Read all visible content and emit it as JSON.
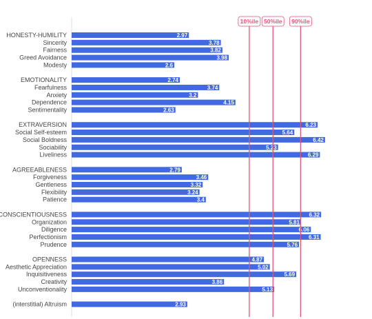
{
  "chart_data": {
    "type": "bar",
    "orientation": "horizontal",
    "xlim": [
      0,
      7
    ],
    "percentiles": [
      {
        "label": "10%ile",
        "value": 4.5,
        "color": "#e0557a"
      },
      {
        "label": "50%ile",
        "value": 5.1,
        "color": "#e0557a"
      },
      {
        "label": "90%ile",
        "value": 5.8,
        "color": "#e0557a"
      }
    ],
    "rows": [
      {
        "label": "HONESTY-HUMILITY",
        "value": 2.97,
        "display": "2.97"
      },
      {
        "label": "Sincerity",
        "value": 3.78,
        "display": "3.78"
      },
      {
        "label": "Fairness",
        "value": 3.82,
        "display": "3.82"
      },
      {
        "label": "Greed Avoidance",
        "value": 3.98,
        "display": "3.98"
      },
      {
        "label": "Modesty",
        "value": 2.6,
        "display": "2.6"
      },
      null,
      {
        "label": "EMOTIONALITY",
        "value": 2.74,
        "display": "2.74"
      },
      {
        "label": "Fearfulness",
        "value": 3.74,
        "display": "3.74"
      },
      {
        "label": "Anxiety",
        "value": 3.2,
        "display": "3.2"
      },
      {
        "label": "Dependence",
        "value": 4.15,
        "display": "4.15"
      },
      {
        "label": "Sentimentality",
        "value": 2.63,
        "display": "2.63"
      },
      null,
      {
        "label": "EXTRAVERSION",
        "value": 6.23,
        "display": "6.23"
      },
      {
        "label": "Social Self-esteem",
        "value": 5.64,
        "display": "5.64"
      },
      {
        "label": "Social Boldness",
        "value": 6.42,
        "display": "6.42"
      },
      {
        "label": "Sociability",
        "value": 5.23,
        "display": "5.23"
      },
      {
        "label": "Liveliness",
        "value": 6.29,
        "display": "6.29"
      },
      null,
      {
        "label": "AGREEABLENESS",
        "value": 2.79,
        "display": "2.79"
      },
      {
        "label": "Forgiveness",
        "value": 3.46,
        "display": "3.46"
      },
      {
        "label": "Gentleness",
        "value": 3.32,
        "display": "3.32"
      },
      {
        "label": "Flexibility",
        "value": 3.24,
        "display": "3.24"
      },
      {
        "label": "Patience",
        "value": 3.4,
        "display": "3.4"
      },
      null,
      {
        "label": "CONSCIENTIOUSNESS",
        "value": 6.32,
        "display": "6.32"
      },
      {
        "label": "Organization",
        "value": 5.81,
        "display": "5.81"
      },
      {
        "label": "Diligence",
        "value": 6.06,
        "display": "6.06"
      },
      {
        "label": "Perfectionism",
        "value": 6.31,
        "display": "6.31"
      },
      {
        "label": "Prudence",
        "value": 5.76,
        "display": "5.76"
      },
      null,
      {
        "label": "OPENNESS",
        "value": 4.87,
        "display": "4.87"
      },
      {
        "label": "Aesthetic Appreciation",
        "value": 5.02,
        "display": "5.02"
      },
      {
        "label": "Inquisitiveness",
        "value": 5.69,
        "display": "5.69"
      },
      {
        "label": "Creativity",
        "value": 3.86,
        "display": "3.86"
      },
      {
        "label": "Unconventionality",
        "value": 5.13,
        "display": "5.13"
      },
      null,
      {
        "label": "(interstitial) Altruism",
        "value": 2.93,
        "display": "2.93"
      }
    ],
    "colors": {
      "bar": "#4169e1",
      "percentile_line": "#e0557a",
      "axis": "#dddddd",
      "label": "#444444",
      "value_text": "#ffffff"
    }
  }
}
